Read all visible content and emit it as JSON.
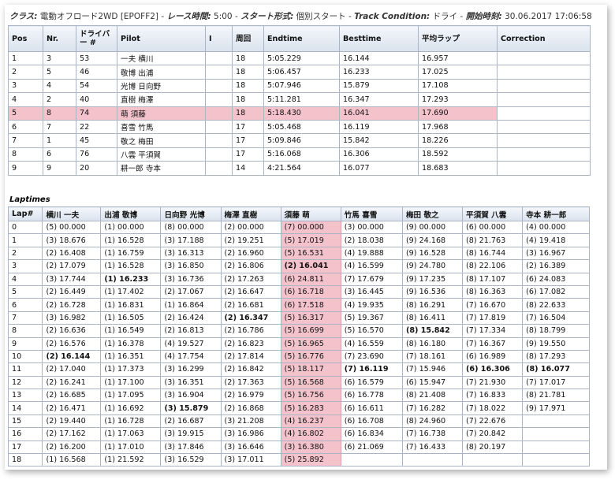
{
  "header": {
    "class_label": "クラス:",
    "class_value": "電動オフロード2WD [EPOFF2]",
    "duration_label": "レース時間:",
    "duration_value": "5:00",
    "start_label": "スタート形式:",
    "start_value": "個別スタート",
    "track_label": "Track Condition:",
    "track_value": "ドライ",
    "begin_label": "開始時刻:",
    "begin_value": "30.06.2017 17:06:58"
  },
  "results": {
    "columns": [
      "Pos",
      "Nr.",
      "ドライバー #",
      "Pilot",
      "I",
      "周回",
      "Endtime",
      "Besttime",
      "平均ラップ",
      "Correction"
    ],
    "rows": [
      [
        "1",
        "3",
        "53",
        "一夫 横川",
        "",
        "18",
        "5:05.229",
        "16.144",
        "16.957",
        ""
      ],
      [
        "2",
        "5",
        "46",
        "敬博 出浦",
        "",
        "18",
        "5:06.457",
        "16.233",
        "17.025",
        ""
      ],
      [
        "3",
        "4",
        "54",
        "光博 日向野",
        "",
        "18",
        "5:07.946",
        "15.879",
        "17.108",
        ""
      ],
      [
        "4",
        "2",
        "40",
        "直樹 梅澤",
        "",
        "18",
        "5:11.281",
        "16.347",
        "17.293",
        ""
      ],
      [
        "5",
        "8",
        "74",
        "萌 須藤",
        "",
        "18",
        "5:18.430",
        "16.041",
        "17.690",
        ""
      ],
      [
        "6",
        "7",
        "22",
        "喜雪 竹馬",
        "",
        "17",
        "5:05.468",
        "16.119",
        "17.968",
        ""
      ],
      [
        "7",
        "1",
        "45",
        "敬之 梅田",
        "",
        "17",
        "5:09.846",
        "15.842",
        "18.226",
        ""
      ],
      [
        "8",
        "6",
        "76",
        "八雲 平須賀",
        "",
        "17",
        "5:16.068",
        "16.306",
        "18.592",
        ""
      ],
      [
        "9",
        "9",
        "20",
        "耕一郎 寺本",
        "",
        "14",
        "4:21.564",
        "16.077",
        "18.683",
        ""
      ]
    ],
    "highlight_row": 4
  },
  "laptimes": {
    "title": "Laptimes",
    "columns": [
      "Lap#",
      "横川 一夫",
      "出浦 敬博",
      "日向野 光博",
      "梅澤 直樹",
      "須藤 萌",
      "竹馬 喜雪",
      "梅田 敬之",
      "平須賀 八雲",
      "寺本 耕一郎"
    ],
    "highlight_col": 5,
    "rows": [
      [
        "0",
        "(5) 00.000",
        "(1) 00.000",
        "(8) 00.000",
        "(2) 00.000",
        "(7) 00.000",
        "(3) 00.000",
        "(9) 00.000",
        "(6) 00.000",
        "(4) 00.000"
      ],
      [
        "1",
        "(3) 18.676",
        "(1) 16.528",
        "(3) 17.188",
        "(2) 19.251",
        "(5) 17.019",
        "(2) 18.038",
        "(9) 24.168",
        "(8) 21.763",
        "(4) 19.418"
      ],
      [
        "2",
        "(2) 16.408",
        "(1) 16.759",
        "(3) 16.313",
        "(2) 16.960",
        "(5) 16.531",
        "(4) 19.888",
        "(9) 16.528",
        "(8) 16.744",
        "(3) 16.967"
      ],
      [
        "3",
        "(2) 17.079",
        "(1) 16.528",
        "(3) 16.850",
        "(2) 16.806",
        "(2) *16.041",
        "(4) 16.599",
        "(9) 24.780",
        "(8) 22.106",
        "(2) 16.389"
      ],
      [
        "4",
        "(3) 17.744",
        "(1) *16.233",
        "(3) 16.736",
        "(2) 17.263",
        "(6) 24.811",
        "(7) 17.679",
        "(9) 17.235",
        "(8) 17.107",
        "(6) 24.083"
      ],
      [
        "5",
        "(2) 16.449",
        "(1) 17.402",
        "(2) 17.067",
        "(2) 16.647",
        "(6) 16.718",
        "(3) 16.445",
        "(9) 16.536",
        "(8) 16.363",
        "(6) 17.082"
      ],
      [
        "6",
        "(2) 16.728",
        "(1) 16.831",
        "(1) 16.864",
        "(2) 16.681",
        "(6) 17.518",
        "(4) 19.935",
        "(8) 16.291",
        "(7) 16.670",
        "(8) 22.633"
      ],
      [
        "7",
        "(3) 16.982",
        "(1) 16.505",
        "(2) 16.424",
        "(2) *16.347",
        "(5) 16.317",
        "(5) 19.367",
        "(8) 16.411",
        "(7) 17.819",
        "(7) 16.504"
      ],
      [
        "8",
        "(2) 16.636",
        "(1) 16.549",
        "(2) 16.813",
        "(2) 16.786",
        "(5) 16.699",
        "(5) 16.570",
        "(8) *15.842",
        "(7) 17.334",
        "(8) 18.799"
      ],
      [
        "9",
        "(2) 16.576",
        "(1) 16.378",
        "(4) 19.527",
        "(2) 16.823",
        "(5) 16.965",
        "(4) 16.559",
        "(8) 16.180",
        "(7) 16.367",
        "(9) 19.550"
      ],
      [
        "10",
        "(2) *16.144",
        "(1) 16.351",
        "(4) 17.754",
        "(2) 17.814",
        "(5) 16.776",
        "(7) 23.690",
        "(7) 18.161",
        "(6) 16.989",
        "(8) 17.293"
      ],
      [
        "11",
        "(2) 17.040",
        "(1) 17.373",
        "(3) 16.299",
        "(2) 16.842",
        "(5) 18.117",
        "(7) *16.119",
        "(7) 15.946",
        "(6) *16.306",
        "(8) *16.077"
      ],
      [
        "12",
        "(2) 16.241",
        "(1) 17.100",
        "(3) 16.351",
        "(2) 17.363",
        "(5) 16.568",
        "(6) 16.579",
        "(6) 15.947",
        "(7) 21.930",
        "(7) 17.017"
      ],
      [
        "13",
        "(2) 16.685",
        "(1) 17.095",
        "(3) 16.904",
        "(2) 16.979",
        "(5) 16.756",
        "(6) 16.778",
        "(8) 21.408",
        "(7) 16.833",
        "(8) 21.781"
      ],
      [
        "14",
        "(2) 16.471",
        "(1) 16.692",
        "(3) *15.879",
        "(2) 16.868",
        "(5) 16.283",
        "(6) 16.611",
        "(7) 16.282",
        "(7) 18.022",
        "(9) 17.971"
      ],
      [
        "15",
        "(2) 19.440",
        "(1) 16.728",
        "(2) 16.687",
        "(3) 21.208",
        "(4) 16.237",
        "(6) 16.708",
        "(8) 24.960",
        "(7) 22.676",
        ""
      ],
      [
        "16",
        "(2) 17.162",
        "(1) 17.063",
        "(3) 19.915",
        "(3) 16.986",
        "(4) 16.802",
        "(6) 16.834",
        "(7) 16.738",
        "(7) 20.842",
        ""
      ],
      [
        "17",
        "(2) 16.200",
        "(1) 17.010",
        "(3) 17.846",
        "(3) 16.646",
        "(3) 16.380",
        "(6) 21.069",
        "(7) 16.433",
        "(8) 20.197",
        ""
      ],
      [
        "18",
        "(1) 16.568",
        "(1) 21.592",
        "(3) 16.529",
        "(3) 17.011",
        "(5) 25.892",
        "",
        "",
        "",
        ""
      ]
    ]
  }
}
